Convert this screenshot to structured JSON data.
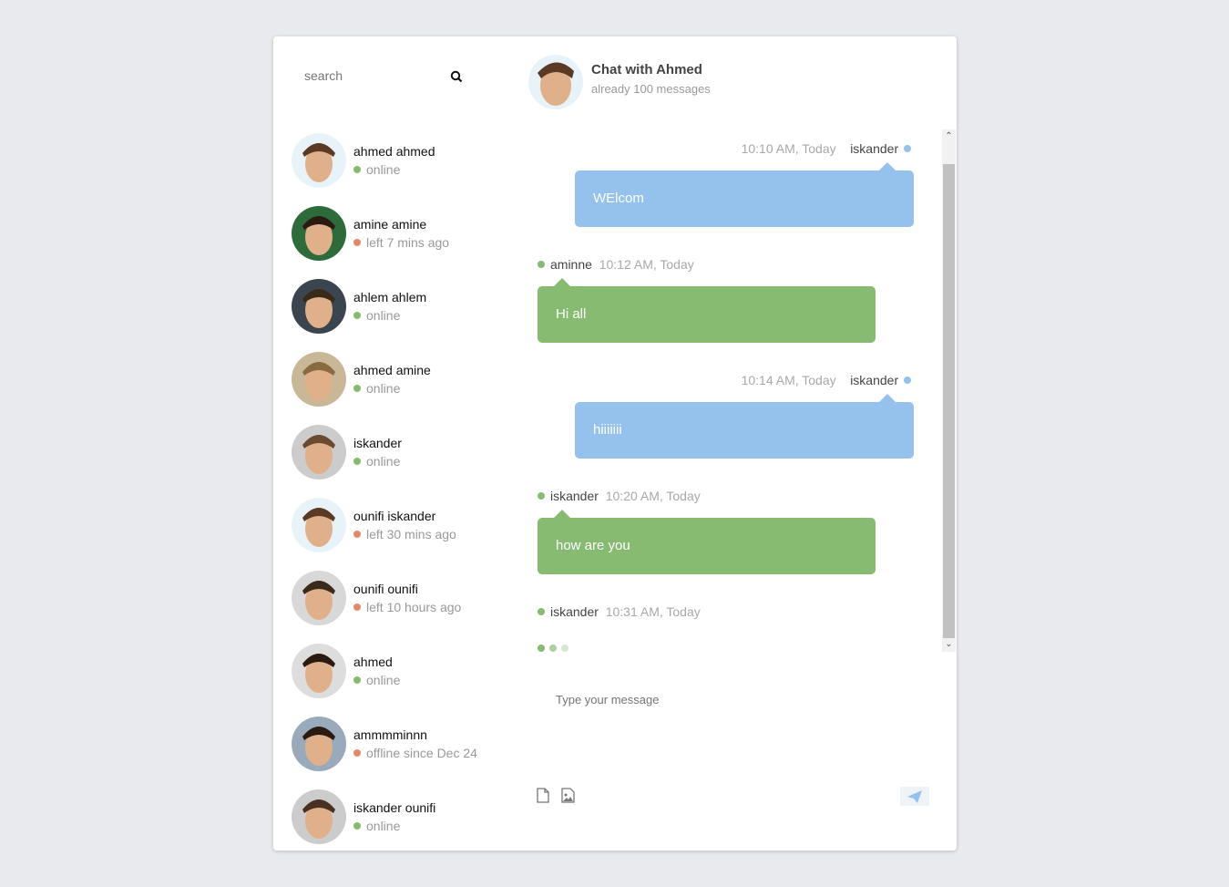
{
  "search": {
    "placeholder": "search",
    "icon": "search-icon"
  },
  "contacts": [
    {
      "name": "ahmed ahmed",
      "status": "online",
      "state": "online"
    },
    {
      "name": "amine amine",
      "status": "left 7 mins ago",
      "state": "offline"
    },
    {
      "name": "ahlem ahlem",
      "status": "online",
      "state": "online"
    },
    {
      "name": "ahmed amine",
      "status": "online",
      "state": "online"
    },
    {
      "name": "iskander",
      "status": "online",
      "state": "online"
    },
    {
      "name": "ounifi iskander",
      "status": "left 30 mins ago",
      "state": "offline"
    },
    {
      "name": "ounifi ounifi",
      "status": "left 10 hours ago",
      "state": "offline"
    },
    {
      "name": "ahmed",
      "status": "online",
      "state": "online"
    },
    {
      "name": "ammmminnn",
      "status": "offline since Dec 24",
      "state": "offline"
    },
    {
      "name": "iskander ounifi",
      "status": "online",
      "state": "online"
    }
  ],
  "header": {
    "title": "Chat with Ahmed",
    "subtitle": "already 100 messages"
  },
  "messages": [
    {
      "from": "iskander",
      "time": "10:10 AM, Today",
      "text": "WElcom",
      "mine": true
    },
    {
      "from": "aminne",
      "time": "10:12 AM, Today",
      "text": "Hi all",
      "mine": false
    },
    {
      "from": "iskander",
      "time": "10:14 AM, Today",
      "text": "hiiiiiii",
      "mine": true
    },
    {
      "from": "iskander",
      "time": "10:20 AM, Today",
      "text": "how are you",
      "mine": false
    },
    {
      "from": "iskander",
      "time": "10:31 AM, Today",
      "text": "",
      "mine": false
    }
  ],
  "composer": {
    "placeholder": "Type your message",
    "icons": [
      "file-icon",
      "image-file-icon",
      "send-icon"
    ]
  },
  "colors": {
    "online": "#86bb71",
    "offline": "#e38968",
    "me": "#94c2ed",
    "other": "#86bb71",
    "background": "#e9eaee"
  }
}
